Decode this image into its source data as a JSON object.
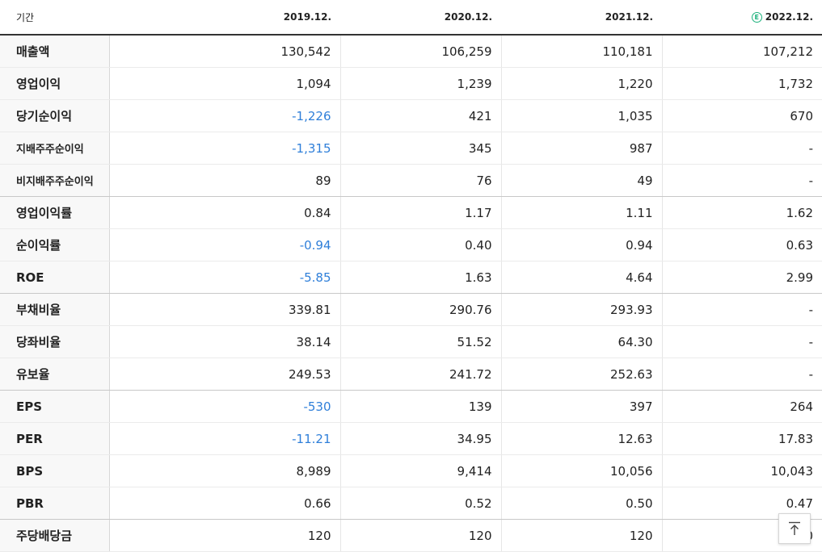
{
  "header": {
    "label": "기간",
    "estimate_mark": "E",
    "periods": [
      "2019.12.",
      "2020.12.",
      "2021.12.",
      "2022.12."
    ]
  },
  "rows": [
    {
      "label": "매출액",
      "values": [
        "130,542",
        "106,259",
        "110,181",
        "107,212"
      ]
    },
    {
      "label": "영업이익",
      "values": [
        "1,094",
        "1,239",
        "1,220",
        "1,732"
      ]
    },
    {
      "label": "당기순이익",
      "values": [
        "-1,226",
        "421",
        "1,035",
        "670"
      ]
    },
    {
      "label": "지배주주순이익",
      "values": [
        "-1,315",
        "345",
        "987",
        "-"
      ]
    },
    {
      "label": "비지배주주순이익",
      "values": [
        "89",
        "76",
        "49",
        "-"
      ]
    },
    {
      "label": "영업이익률",
      "values": [
        "0.84",
        "1.17",
        "1.11",
        "1.62"
      ]
    },
    {
      "label": "순이익률",
      "values": [
        "-0.94",
        "0.40",
        "0.94",
        "0.63"
      ]
    },
    {
      "label": "ROE",
      "values": [
        "-5.85",
        "1.63",
        "4.64",
        "2.99"
      ]
    },
    {
      "label": "부채비율",
      "values": [
        "339.81",
        "290.76",
        "293.93",
        "-"
      ]
    },
    {
      "label": "당좌비율",
      "values": [
        "38.14",
        "51.52",
        "64.30",
        "-"
      ]
    },
    {
      "label": "유보율",
      "values": [
        "249.53",
        "241.72",
        "252.63",
        "-"
      ]
    },
    {
      "label": "EPS",
      "values": [
        "-530",
        "139",
        "397",
        "264"
      ]
    },
    {
      "label": "PER",
      "values": [
        "-11.21",
        "34.95",
        "12.63",
        "17.83"
      ]
    },
    {
      "label": "BPS",
      "values": [
        "8,989",
        "9,414",
        "10,056",
        "10,043"
      ]
    },
    {
      "label": "PBR",
      "values": [
        "0.66",
        "0.52",
        "0.50",
        "0.47"
      ]
    },
    {
      "label": "주당배당금",
      "values": [
        "120",
        "120",
        "120",
        "0"
      ]
    }
  ],
  "colors": {
    "negative": "#2f7fd9",
    "estimate": "#1db17c"
  },
  "scroll_top_icon": "arrow-up-to-line-icon"
}
